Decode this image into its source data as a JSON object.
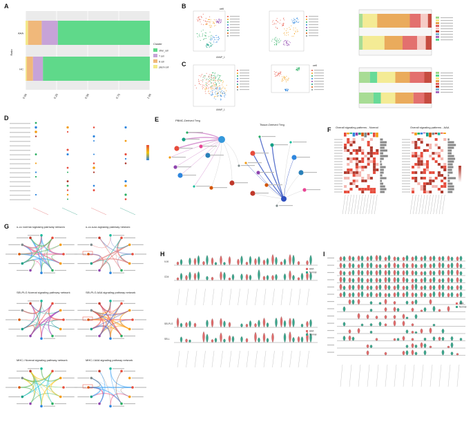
{
  "panel_letters": [
    "A",
    "B",
    "C",
    "D",
    "E",
    "F",
    "G",
    "H",
    "I"
  ],
  "colors": {
    "other_cell": "#5fd98a",
    "t_cell": "#c7a3d8",
    "b_cell": "#f0b87a",
    "plasm_cell": "#f3e98a",
    "normal": "#e16b6b",
    "aaa": "#3aa68c"
  },
  "panelA": {
    "ylabel": "Ratio",
    "legend_title": "Cluster",
    "legend_items": [
      "other_cell",
      "T cell",
      "B cell",
      "plasm cell"
    ]
  },
  "chart_data": [
    {
      "type": "bar",
      "orientation": "horizontal-stacked",
      "categories": [
        "AAA",
        "HC"
      ],
      "series": [
        {
          "name": "other_cell",
          "values": [
            0.74,
            0.86
          ]
        },
        {
          "name": "T cell",
          "values": [
            0.13,
            0.08
          ]
        },
        {
          "name": "B cell",
          "values": [
            0.11,
            0.05
          ]
        },
        {
          "name": "plasm cell",
          "values": [
            0.02,
            0.01
          ]
        }
      ],
      "xlim": [
        0,
        1
      ],
      "xticks": [
        "0.00",
        "0.25",
        "0.50",
        "0.75",
        "1.00"
      ],
      "ylabel": "Ratio",
      "legend_title": "Cluster",
      "grid": true,
      "legend": "right"
    }
  ],
  "panelB": {
    "title": "cell",
    "xlabel": "UMAP_1",
    "ylabel": "UMAP_2"
  },
  "panelC": {
    "title": "cell",
    "xlabel": "UMAP_1",
    "ylabel": "UMAP_2"
  },
  "panelE": {
    "left_title": "PBMC-Derived Treg",
    "right_title": "Tissue-Derived Treg"
  },
  "panelF": {
    "left_title": "Overall signaling patterns - Normal",
    "right_title": "Overall signaling patterns - AAA"
  },
  "panelG": {
    "titles": [
      "IL16 Normal signaling pathway network",
      "IL16 AAA signaling pathway network",
      "SELPLG Normal signaling pathway network",
      "SELPLG AAA signaling pathway network",
      "MHC-I Normal signaling pathway network",
      "MHC-I AAA signaling pathway network"
    ]
  },
  "panelH": {
    "genes_top": [
      "IL16",
      "CD4"
    ],
    "genes_bottom": [
      "SELPLG",
      "SELL"
    ],
    "legend": [
      "AAA",
      "Normal"
    ]
  },
  "panelI": {
    "legend": [
      "AAA",
      "Normal"
    ]
  }
}
